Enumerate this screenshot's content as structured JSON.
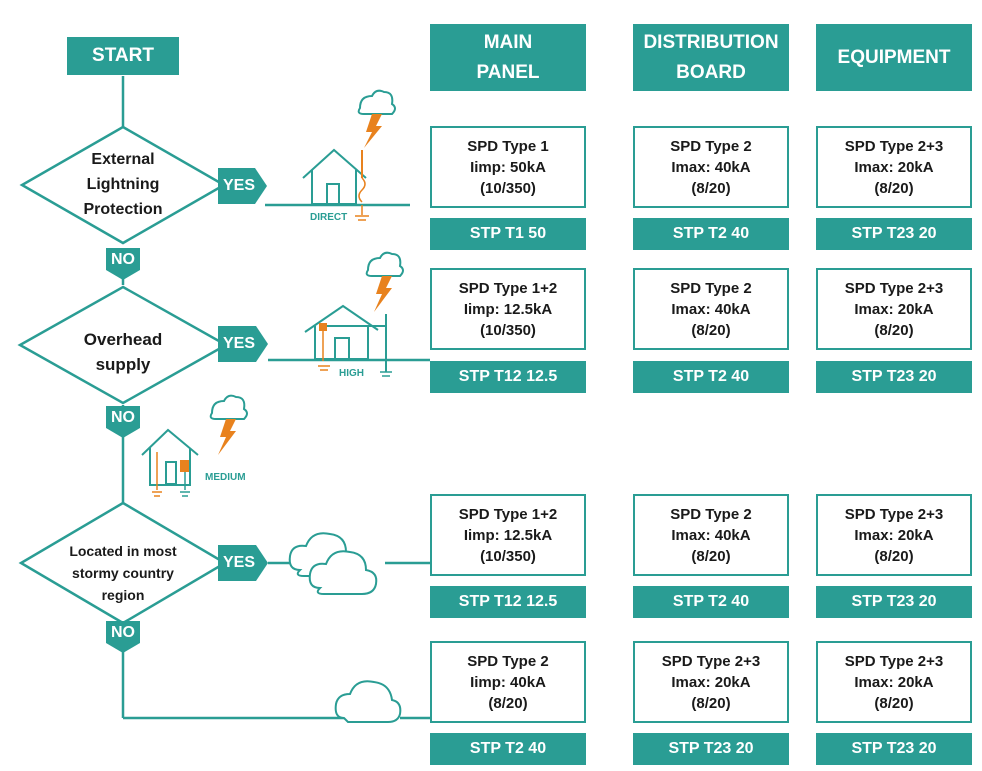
{
  "colors": {
    "teal": "#2a9d94",
    "orange": "#e8821e",
    "text": "#1a1a1a"
  },
  "flow": {
    "start": "START",
    "q1": "External\nLightning\nProtection",
    "q2": "Overhead\nsupply",
    "q3": "Located in most\nstormy country\nregion",
    "yes": "YES",
    "no": "NO",
    "direct": "DIRECT",
    "high": "HIGH",
    "medium": "MEDIUM"
  },
  "headers": {
    "main": "MAIN\nPANEL",
    "dist": "DISTRIBUTION\nBOARD",
    "equip": "EQUIPMENT"
  },
  "rows": [
    {
      "main": {
        "l1": "SPD Type 1",
        "l2": "Iimp: 50kA",
        "l3": "(10/350)",
        "product": "STP T1 50"
      },
      "dist": {
        "l1": "SPD Type 2",
        "l2": "Imax: 40kA",
        "l3": "(8/20)",
        "product": "STP T2 40"
      },
      "equip": {
        "l1": "SPD Type 2+3",
        "l2": "Imax: 20kA",
        "l3": "(8/20)",
        "product": "STP T23 20"
      }
    },
    {
      "main": {
        "l1": "SPD Type 1+2",
        "l2": "Iimp: 12.5kA",
        "l3": "(10/350)",
        "product": "STP T12 12.5"
      },
      "dist": {
        "l1": "SPD Type 2",
        "l2": "Imax: 40kA",
        "l3": "(8/20)",
        "product": "STP T2 40"
      },
      "equip": {
        "l1": "SPD Type 2+3",
        "l2": "Imax: 20kA",
        "l3": "(8/20)",
        "product": "STP T23 20"
      }
    },
    {
      "main": {
        "l1": "SPD Type 1+2",
        "l2": "Iimp: 12.5kA",
        "l3": "(10/350)",
        "product": "STP T12 12.5"
      },
      "dist": {
        "l1": "SPD Type 2",
        "l2": "Imax: 40kA",
        "l3": "(8/20)",
        "product": "STP T2 40"
      },
      "equip": {
        "l1": "SPD Type 2+3",
        "l2": "Imax: 20kA",
        "l3": "(8/20)",
        "product": "STP T23 20"
      }
    },
    {
      "main": {
        "l1": "SPD Type 2",
        "l2": "Iimp: 40kA",
        "l3": "(8/20)",
        "product": "STP T2 40"
      },
      "dist": {
        "l1": "SPD Type 2+3",
        "l2": "Imax: 20kA",
        "l3": "(8/20)",
        "product": "STP T23 20"
      },
      "equip": {
        "l1": "SPD Type 2+3",
        "l2": "Imax: 20kA",
        "l3": "(8/20)",
        "product": "STP T23 20"
      }
    }
  ]
}
